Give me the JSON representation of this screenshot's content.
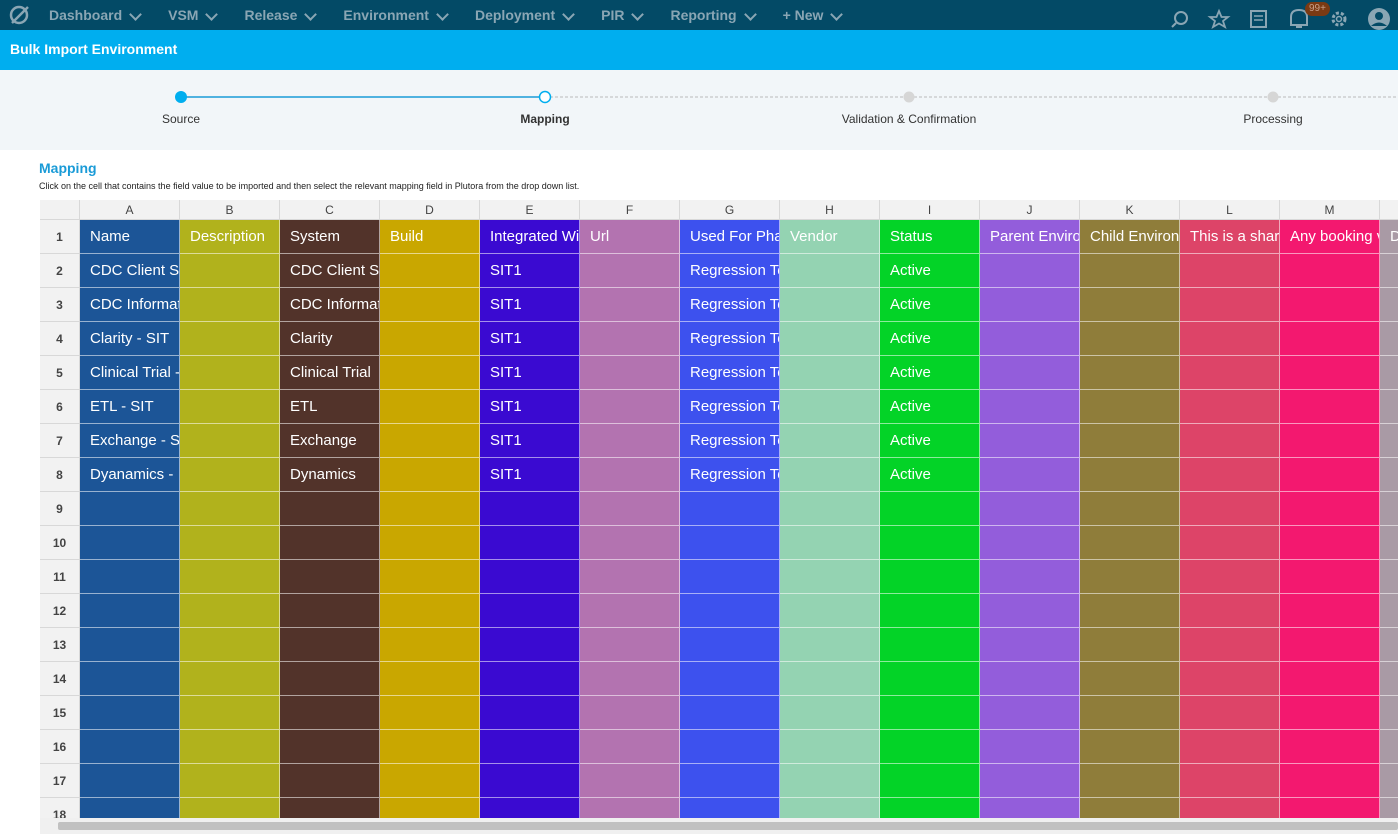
{
  "nav": {
    "items": [
      "Dashboard",
      "VSM",
      "Release",
      "Environment",
      "Deployment",
      "PIR",
      "Reporting",
      "+ New"
    ],
    "badge": "99+"
  },
  "header": {
    "title": "Bulk Import Environment"
  },
  "steps": [
    {
      "label": "Source",
      "state": "done"
    },
    {
      "label": "Mapping",
      "state": "current"
    },
    {
      "label": "Validation & Confirmation",
      "state": "todo"
    },
    {
      "label": "Processing",
      "state": "todo"
    }
  ],
  "mapping": {
    "title": "Mapping",
    "instruction": "Click on the cell that contains the field value to be imported and then select the relevant mapping field in Plutora from the drop down list."
  },
  "sheet": {
    "columns": [
      {
        "letter": "A",
        "color": "#1c5597"
      },
      {
        "letter": "B",
        "color": "#b1b21c"
      },
      {
        "letter": "C",
        "color": "#52332a"
      },
      {
        "letter": "D",
        "color": "#c9a700"
      },
      {
        "letter": "E",
        "color": "#3a0ad1"
      },
      {
        "letter": "F",
        "color": "#b373b0"
      },
      {
        "letter": "G",
        "color": "#3d51ee"
      },
      {
        "letter": "H",
        "color": "#94d3b2"
      },
      {
        "letter": "I",
        "color": "#03d327"
      },
      {
        "letter": "J",
        "color": "#935ddb"
      },
      {
        "letter": "K",
        "color": "#8f7d3a"
      },
      {
        "letter": "L",
        "color": "#dd4468"
      },
      {
        "letter": "M",
        "color": "#f3186f"
      },
      {
        "letter": null,
        "color": "#a99aa5"
      }
    ],
    "row_numbers": [
      1,
      2,
      3,
      4,
      5,
      6,
      7,
      8,
      9,
      10,
      11,
      12,
      13,
      14,
      15,
      16,
      17,
      18
    ],
    "rows": [
      [
        "Name",
        "Description",
        "System",
        "Build",
        "Integrated Wi",
        "Url",
        "Used For Pha",
        "Vendor",
        "Status",
        "Parent Enviro",
        "Child Environ",
        "This is a shar",
        "Any booking v",
        "D"
      ],
      [
        "CDC Client S",
        null,
        "CDC Client S",
        null,
        "SIT1",
        null,
        "Regression Te",
        null,
        "Active",
        null,
        null,
        null,
        null,
        null
      ],
      [
        "CDC Informat",
        null,
        "CDC Informat",
        null,
        "SIT1",
        null,
        "Regression Te",
        null,
        "Active",
        null,
        null,
        null,
        null,
        null
      ],
      [
        "Clarity - SIT",
        null,
        "Clarity",
        null,
        "SIT1",
        null,
        "Regression Te",
        null,
        "Active",
        null,
        null,
        null,
        null,
        null
      ],
      [
        "Clinical Trial -",
        null,
        "Clinical Trial",
        null,
        "SIT1",
        null,
        "Regression Te",
        null,
        "Active",
        null,
        null,
        null,
        null,
        null
      ],
      [
        "ETL - SIT",
        null,
        "ETL",
        null,
        "SIT1",
        null,
        "Regression Te",
        null,
        "Active",
        null,
        null,
        null,
        null,
        null
      ],
      [
        "Exchange - S",
        null,
        "Exchange",
        null,
        "SIT1",
        null,
        "Regression Te",
        null,
        "Active",
        null,
        null,
        null,
        null,
        null
      ],
      [
        "Dyanamics -",
        null,
        "Dynamics",
        null,
        "SIT1",
        null,
        "Regression Te",
        null,
        "Active",
        null,
        null,
        null,
        null,
        null
      ]
    ]
  }
}
